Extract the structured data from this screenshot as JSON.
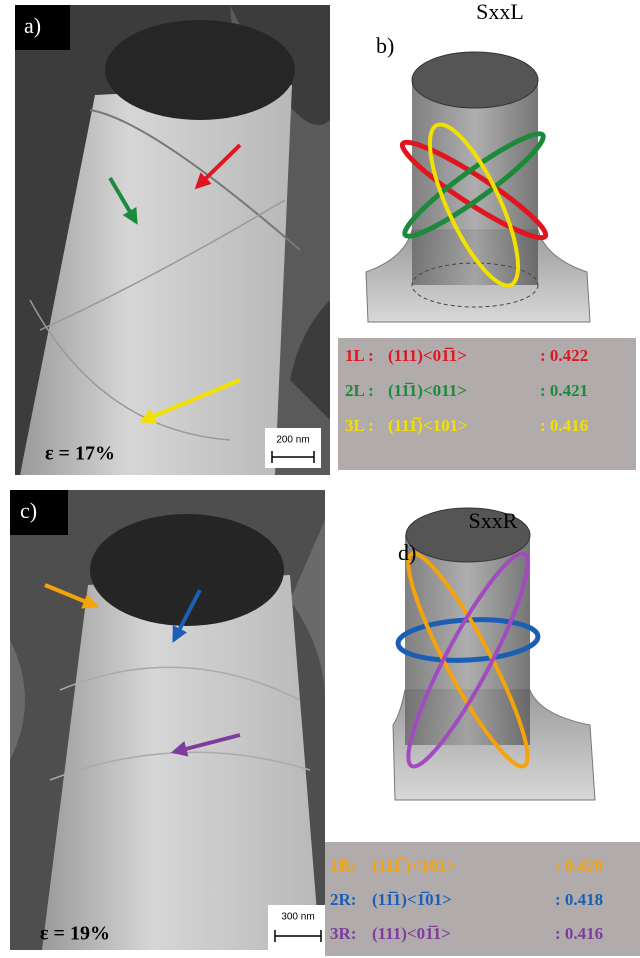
{
  "panels": [
    {
      "label": "a)",
      "strain": "ε = 17%",
      "scale_bar": "200 nm"
    },
    {
      "label": "b)",
      "title": "SxxL",
      "slip_systems": [
        {
          "name": "1L :",
          "system": "(111)<01̅1>",
          "factor": ": 0.422",
          "color": "#e0151f"
        },
        {
          "name": "2L :",
          "system": "(11̅1)<011>",
          "factor": ": 0.421",
          "color": "#1c8a3a"
        },
        {
          "name": "3L :",
          "system": "(111̅)<101>",
          "factor": ": 0.416",
          "color": "#f2e100"
        }
      ]
    },
    {
      "label": "c)",
      "strain": "ε = 19%",
      "scale_bar": "300 nm"
    },
    {
      "label": "d)",
      "title": "SxxR",
      "slip_systems": [
        {
          "name": "1R:",
          "system": "(111̅ )<101>",
          "factor": ": 0.420",
          "color": "#f5a30a"
        },
        {
          "name": "2R:",
          "system": "(11̅1)<1̅01>",
          "factor": ": 0.418",
          "color": "#1b5fb5"
        },
        {
          "name": "3R:",
          "system": "(111)<01̅1>",
          "factor": ": 0.416",
          "color": "#7d3c9e"
        }
      ]
    }
  ]
}
